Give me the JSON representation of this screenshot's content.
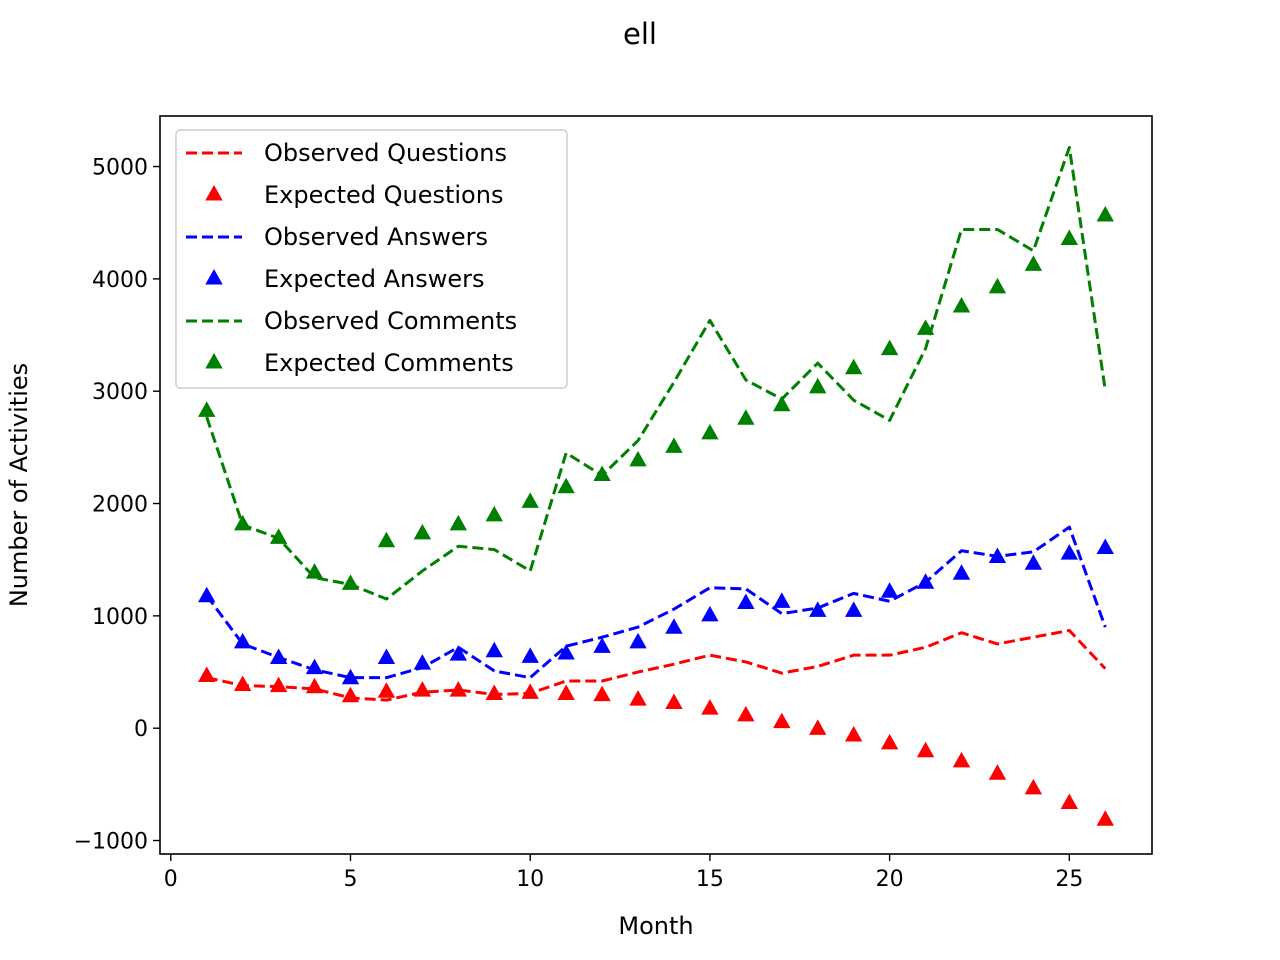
{
  "chart_data": {
    "type": "line",
    "title": "ell",
    "xlabel": "Month",
    "ylabel": "Number of Activities",
    "xlim": [
      -0.3,
      27.3
    ],
    "ylim": [
      -1120,
      5450
    ],
    "xticks": [
      0,
      5,
      10,
      15,
      20,
      25
    ],
    "yticks": [
      -1000,
      0,
      1000,
      2000,
      3000,
      4000,
      5000
    ],
    "ytick_labels": [
      "−1000",
      "0",
      "1000",
      "2000",
      "3000",
      "4000",
      "5000"
    ],
    "grid": false,
    "legend_position": "top-left",
    "x": [
      1,
      2,
      3,
      4,
      5,
      6,
      7,
      8,
      9,
      10,
      11,
      12,
      13,
      14,
      15,
      16,
      17,
      18,
      19,
      20,
      21,
      22,
      23,
      24,
      25,
      26
    ],
    "series": [
      {
        "name": "Observed Questions",
        "style": "dashed",
        "color": "#ff0000",
        "values": [
          450,
          380,
          370,
          350,
          270,
          250,
          320,
          340,
          300,
          310,
          420,
          420,
          500,
          570,
          650,
          590,
          490,
          550,
          650,
          650,
          720,
          850,
          750,
          810,
          870,
          530
        ]
      },
      {
        "name": "Expected Questions",
        "style": "triangle",
        "color": "#ff0000",
        "values": [
          460,
          380,
          370,
          360,
          280,
          320,
          330,
          330,
          300,
          310,
          300,
          290,
          250,
          220,
          170,
          110,
          50,
          -10,
          -70,
          -140,
          -210,
          -300,
          -410,
          -540,
          -670,
          -820
        ]
      },
      {
        "name": "Observed Answers",
        "style": "dashed",
        "color": "#0000ff",
        "values": [
          1180,
          750,
          630,
          520,
          450,
          450,
          540,
          720,
          510,
          450,
          730,
          810,
          900,
          1060,
          1250,
          1240,
          1020,
          1070,
          1200,
          1130,
          1300,
          1580,
          1530,
          1570,
          1790,
          900
        ]
      },
      {
        "name": "Expected Answers",
        "style": "triangle",
        "color": "#0000ff",
        "values": [
          1170,
          760,
          620,
          530,
          440,
          620,
          570,
          650,
          680,
          630,
          660,
          720,
          760,
          890,
          1000,
          1110,
          1120,
          1040,
          1040,
          1210,
          1290,
          1370,
          1520,
          1460,
          1550,
          1600
        ]
      },
      {
        "name": "Observed Comments",
        "style": "dashed",
        "color": "#008000",
        "values": [
          2770,
          1810,
          1690,
          1340,
          1280,
          1150,
          1400,
          1620,
          1590,
          1400,
          2450,
          2250,
          2560,
          3080,
          3630,
          3100,
          2930,
          3250,
          2920,
          2740,
          3380,
          4440,
          4440,
          4250,
          5170,
          3010
        ]
      },
      {
        "name": "Expected Comments",
        "style": "triangle",
        "color": "#008000",
        "values": [
          2820,
          1810,
          1690,
          1380,
          1280,
          1660,
          1730,
          1810,
          1890,
          2010,
          2140,
          2250,
          2380,
          2500,
          2620,
          2750,
          2870,
          3030,
          3200,
          3370,
          3550,
          3750,
          3920,
          4120,
          4350,
          4560
        ]
      }
    ]
  }
}
